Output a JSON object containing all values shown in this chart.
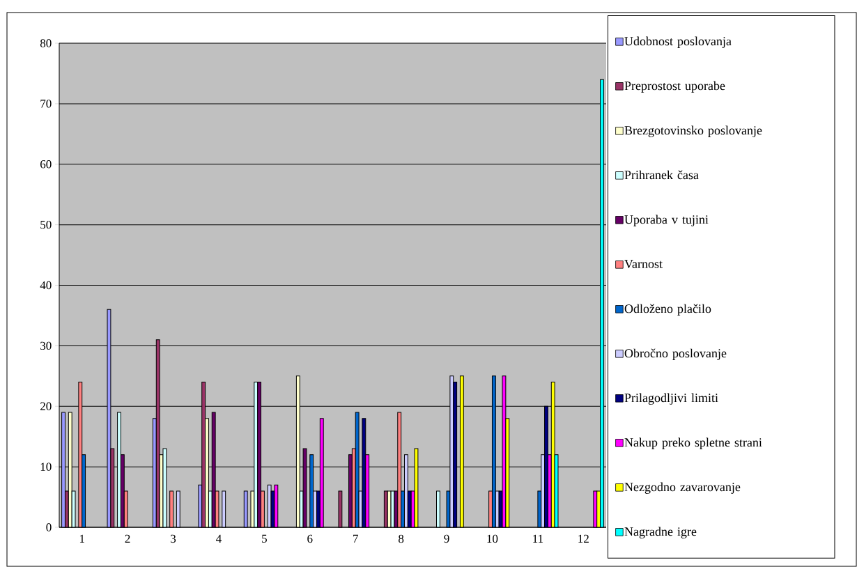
{
  "chart_data": {
    "type": "bar",
    "categories": [
      "1",
      "2",
      "3",
      "4",
      "5",
      "6",
      "7",
      "8",
      "9",
      "10",
      "11",
      "12"
    ],
    "ylim": [
      0,
      80
    ],
    "yticks": [
      0,
      10,
      20,
      30,
      40,
      50,
      60,
      70,
      80
    ],
    "grid": "y",
    "legend": "right",
    "series": [
      {
        "name": "Udobnost poslovanja",
        "color": "#9999ff",
        "values": [
          19,
          36,
          18,
          7,
          6,
          null,
          null,
          null,
          null,
          null,
          null,
          null
        ]
      },
      {
        "name": "Preprostost uporabe",
        "color": "#993366",
        "values": [
          6,
          13,
          31,
          24,
          null,
          null,
          6,
          6,
          null,
          null,
          null,
          null
        ]
      },
      {
        "name": "Brezgotovinsko poslovanje",
        "color": "#ffffcc",
        "values": [
          19,
          null,
          12,
          18,
          6,
          25,
          null,
          6,
          null,
          null,
          null,
          null
        ]
      },
      {
        "name": "Prihranek časa",
        "color": "#ccffff",
        "values": [
          6,
          19,
          13,
          6,
          24,
          6,
          null,
          6,
          6,
          null,
          null,
          null
        ]
      },
      {
        "name": "Uporaba v tujini",
        "color": "#660066",
        "values": [
          null,
          12,
          null,
          19,
          24,
          13,
          12,
          6,
          null,
          null,
          null,
          null
        ]
      },
      {
        "name": "Varnost",
        "color": "#ff8080",
        "values": [
          24,
          6,
          6,
          6,
          6,
          null,
          13,
          19,
          null,
          6,
          null,
          null
        ]
      },
      {
        "name": "Odloženo plačilo",
        "color": "#0066cc",
        "values": [
          12,
          null,
          null,
          null,
          null,
          12,
          19,
          6,
          6,
          25,
          6,
          null
        ]
      },
      {
        "name": "Obročno poslovanje",
        "color": "#ccccff",
        "values": [
          null,
          null,
          6,
          6,
          7,
          6,
          6,
          12,
          25,
          6,
          12,
          null
        ]
      },
      {
        "name": "Prilagodljivi limiti",
        "color": "#000080",
        "values": [
          null,
          null,
          null,
          null,
          6,
          6,
          18,
          6,
          24,
          6,
          20,
          null
        ]
      },
      {
        "name": "Nakup preko spletne strani",
        "color": "#ff00ff",
        "values": [
          null,
          null,
          null,
          null,
          7,
          18,
          12,
          6,
          null,
          25,
          12,
          6
        ]
      },
      {
        "name": "Nezgodno zavarovanje",
        "color": "#ffff00",
        "values": [
          null,
          null,
          null,
          null,
          null,
          null,
          null,
          13,
          25,
          18,
          24,
          6
        ]
      },
      {
        "name": "Nagradne igre",
        "color": "#00ffff",
        "values": [
          null,
          null,
          null,
          null,
          null,
          null,
          null,
          null,
          null,
          null,
          12,
          74
        ]
      }
    ]
  }
}
